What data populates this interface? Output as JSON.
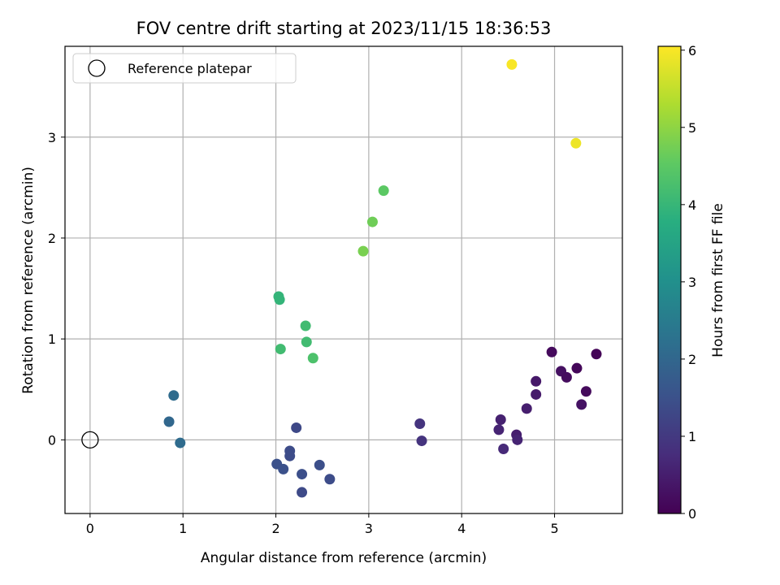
{
  "chart_data": {
    "type": "scatter",
    "title": "FOV centre drift starting at 2023/11/15 18:36:53",
    "xlabel": "Angular distance from reference (arcmin)",
    "ylabel": "Rotation from reference (arcmin)",
    "xlim": [
      -0.27,
      5.73
    ],
    "ylim": [
      -0.73,
      3.9
    ],
    "x_ticks": [
      0,
      1,
      2,
      3,
      4,
      5
    ],
    "y_ticks": [
      0,
      1,
      2,
      3
    ],
    "grid": true,
    "legend": {
      "placement": "top-left",
      "entries": [
        {
          "label": "Reference platepar",
          "marker": "open-circle",
          "x": 0,
          "y": 0
        }
      ]
    },
    "colorbar": {
      "label": "Hours from first FF file",
      "colormap": "viridis",
      "range": [
        0,
        6.05
      ],
      "ticks": [
        0,
        1,
        2,
        3,
        4,
        5,
        6
      ]
    },
    "points": [
      {
        "x": 5.45,
        "y": 0.85,
        "c": 0.05
      },
      {
        "x": 4.97,
        "y": 0.87,
        "c": 0.15
      },
      {
        "x": 5.24,
        "y": 0.71,
        "c": 0.1
      },
      {
        "x": 5.07,
        "y": 0.68,
        "c": 0.25
      },
      {
        "x": 5.13,
        "y": 0.62,
        "c": 0.2
      },
      {
        "x": 4.8,
        "y": 0.58,
        "c": 0.4
      },
      {
        "x": 4.8,
        "y": 0.45,
        "c": 0.45
      },
      {
        "x": 5.34,
        "y": 0.48,
        "c": 0.15
      },
      {
        "x": 5.29,
        "y": 0.35,
        "c": 0.3
      },
      {
        "x": 4.7,
        "y": 0.31,
        "c": 0.5
      },
      {
        "x": 4.42,
        "y": 0.2,
        "c": 0.55
      },
      {
        "x": 4.4,
        "y": 0.1,
        "c": 0.6
      },
      {
        "x": 4.59,
        "y": 0.05,
        "c": 0.5
      },
      {
        "x": 4.6,
        "y": 0.0,
        "c": 0.6
      },
      {
        "x": 4.45,
        "y": -0.09,
        "c": 0.7
      },
      {
        "x": 3.55,
        "y": 0.16,
        "c": 0.9
      },
      {
        "x": 3.57,
        "y": -0.01,
        "c": 0.9
      },
      {
        "x": 2.22,
        "y": 0.12,
        "c": 1.3
      },
      {
        "x": 2.15,
        "y": -0.11,
        "c": 1.4
      },
      {
        "x": 2.15,
        "y": -0.16,
        "c": 1.4
      },
      {
        "x": 2.01,
        "y": -0.24,
        "c": 1.5
      },
      {
        "x": 2.08,
        "y": -0.29,
        "c": 1.5
      },
      {
        "x": 2.28,
        "y": -0.34,
        "c": 1.45
      },
      {
        "x": 2.47,
        "y": -0.25,
        "c": 1.45
      },
      {
        "x": 2.58,
        "y": -0.39,
        "c": 1.4
      },
      {
        "x": 2.28,
        "y": -0.52,
        "c": 1.35
      },
      {
        "x": 0.9,
        "y": 0.44,
        "c": 2.1
      },
      {
        "x": 0.85,
        "y": 0.18,
        "c": 2.0
      },
      {
        "x": 0.97,
        "y": -0.03,
        "c": 2.1
      },
      {
        "x": 2.03,
        "y": 1.42,
        "c": 3.95
      },
      {
        "x": 2.04,
        "y": 1.39,
        "c": 3.95
      },
      {
        "x": 2.32,
        "y": 1.13,
        "c": 4.15
      },
      {
        "x": 2.05,
        "y": 0.9,
        "c": 4.15
      },
      {
        "x": 2.33,
        "y": 0.97,
        "c": 4.15
      },
      {
        "x": 2.4,
        "y": 0.81,
        "c": 4.3
      },
      {
        "x": 2.94,
        "y": 1.87,
        "c": 4.8
      },
      {
        "x": 3.04,
        "y": 2.16,
        "c": 4.7
      },
      {
        "x": 3.16,
        "y": 2.47,
        "c": 4.5
      },
      {
        "x": 4.54,
        "y": 3.72,
        "c": 6.0
      },
      {
        "x": 5.23,
        "y": 2.94,
        "c": 5.9
      }
    ]
  }
}
